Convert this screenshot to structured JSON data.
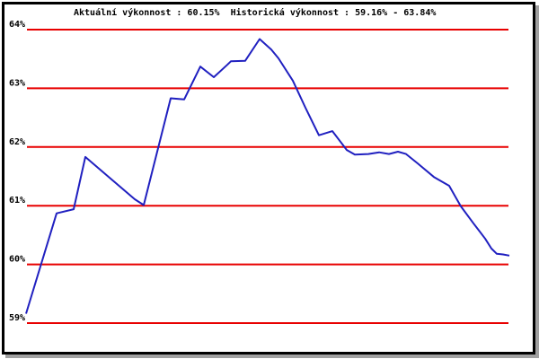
{
  "title": "Aktuální výkonnost : 60.15%  Historická výkonnost : 59.16% - 63.84%",
  "colors": {
    "background": "#ffffff",
    "border": "#000000",
    "shadow": "#a0a0a0",
    "grid": "#e80000",
    "line": "#2020c0",
    "text": "#000000"
  },
  "chart_data": {
    "type": "line",
    "title": "Aktuální výkonnost : 60.15%  Historická výkonnost : 59.16% - 63.84%",
    "annotations": {
      "current_performance": "60.15%",
      "historical_min": "59.16%",
      "historical_max": "63.84%"
    },
    "xlabel": "",
    "ylabel": "",
    "ylim": [
      59,
      64
    ],
    "grid": "horizontal",
    "legend": "none",
    "yticks": [
      {
        "label": "64%",
        "value": 64
      },
      {
        "label": "63%",
        "value": 63
      },
      {
        "label": "62%",
        "value": 62
      },
      {
        "label": "61%",
        "value": 61
      },
      {
        "label": "60%",
        "value": 60
      },
      {
        "label": "59%",
        "value": 59
      }
    ],
    "series": [
      {
        "name": "výkonnost",
        "color": "#2020c0",
        "points": [
          [
            29,
            59.16
          ],
          [
            63,
            60.87
          ],
          [
            82,
            60.94
          ],
          [
            95,
            61.83
          ],
          [
            150,
            61.11
          ],
          [
            160,
            61.01
          ],
          [
            190,
            62.83
          ],
          [
            205,
            62.81
          ],
          [
            223,
            63.37
          ],
          [
            238,
            63.19
          ],
          [
            253,
            63.4
          ],
          [
            257,
            63.46
          ],
          [
            273,
            63.47
          ],
          [
            289,
            63.84
          ],
          [
            302,
            63.66
          ],
          [
            310,
            63.51
          ],
          [
            326,
            63.13
          ],
          [
            340,
            62.67
          ],
          [
            355,
            62.2
          ],
          [
            370,
            62.27
          ],
          [
            386,
            61.95
          ],
          [
            395,
            61.87
          ],
          [
            410,
            61.88
          ],
          [
            422,
            61.91
          ],
          [
            433,
            61.88
          ],
          [
            443,
            61.92
          ],
          [
            452,
            61.88
          ],
          [
            465,
            61.72
          ],
          [
            483,
            61.49
          ],
          [
            500,
            61.34
          ],
          [
            513,
            60.99
          ],
          [
            527,
            60.7
          ],
          [
            540,
            60.44
          ],
          [
            547,
            60.27
          ],
          [
            553,
            60.18
          ],
          [
            560,
            60.17
          ],
          [
            567,
            60.15
          ]
        ]
      }
    ]
  }
}
